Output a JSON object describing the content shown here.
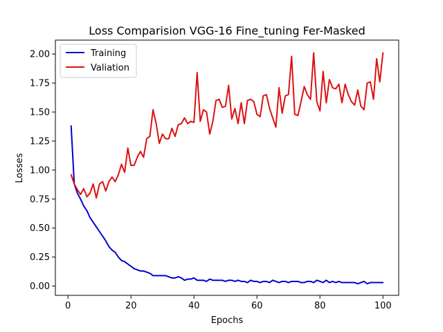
{
  "chart_data": {
    "type": "line",
    "title": "Loss Comparision VGG-16 Fine_tuning Fer-Masked",
    "xlabel": "Epochs",
    "ylabel": "Losses",
    "xlim": [
      -4,
      105
    ],
    "ylim": [
      -0.08,
      2.12
    ],
    "x_ticks": [
      0,
      20,
      40,
      60,
      80,
      100
    ],
    "x_tick_labels": [
      "0",
      "20",
      "40",
      "60",
      "80",
      "100"
    ],
    "y_ticks": [
      0,
      0.25,
      0.5,
      0.75,
      1.0,
      1.25,
      1.5,
      1.75,
      2.0
    ],
    "y_tick_labels": [
      "0.00",
      "0.25",
      "0.50",
      "0.75",
      "1.00",
      "1.25",
      "1.50",
      "1.75",
      "2.00"
    ],
    "grid": false,
    "legend_position": "top-left",
    "x": [
      1,
      2,
      3,
      4,
      5,
      6,
      7,
      8,
      9,
      10,
      11,
      12,
      13,
      14,
      15,
      16,
      17,
      18,
      19,
      20,
      21,
      22,
      23,
      24,
      25,
      26,
      27,
      28,
      29,
      30,
      31,
      32,
      33,
      34,
      35,
      36,
      37,
      38,
      39,
      40,
      41,
      42,
      43,
      44,
      45,
      46,
      47,
      48,
      49,
      50,
      51,
      52,
      53,
      54,
      55,
      56,
      57,
      58,
      59,
      60,
      61,
      62,
      63,
      64,
      65,
      66,
      67,
      68,
      69,
      70,
      71,
      72,
      73,
      74,
      75,
      76,
      77,
      78,
      79,
      80,
      81,
      82,
      83,
      84,
      85,
      86,
      87,
      88,
      89,
      90,
      91,
      92,
      93,
      94,
      95,
      96,
      97,
      98,
      99,
      100
    ],
    "series": [
      {
        "name": "Training",
        "color": "#0000cc",
        "values": [
          1.38,
          0.88,
          0.8,
          0.75,
          0.69,
          0.65,
          0.59,
          0.55,
          0.51,
          0.47,
          0.43,
          0.39,
          0.34,
          0.31,
          0.29,
          0.25,
          0.22,
          0.21,
          0.19,
          0.17,
          0.15,
          0.14,
          0.13,
          0.13,
          0.12,
          0.11,
          0.09,
          0.09,
          0.09,
          0.09,
          0.09,
          0.08,
          0.07,
          0.07,
          0.08,
          0.07,
          0.05,
          0.06,
          0.06,
          0.07,
          0.05,
          0.05,
          0.05,
          0.04,
          0.06,
          0.05,
          0.05,
          0.05,
          0.05,
          0.04,
          0.05,
          0.05,
          0.04,
          0.05,
          0.04,
          0.04,
          0.03,
          0.05,
          0.04,
          0.04,
          0.03,
          0.04,
          0.04,
          0.03,
          0.05,
          0.04,
          0.03,
          0.04,
          0.04,
          0.03,
          0.04,
          0.04,
          0.04,
          0.03,
          0.03,
          0.04,
          0.04,
          0.03,
          0.05,
          0.04,
          0.03,
          0.05,
          0.03,
          0.04,
          0.03,
          0.04,
          0.03,
          0.03,
          0.03,
          0.03,
          0.03,
          0.02,
          0.03,
          0.04,
          0.02,
          0.03,
          0.03,
          0.03,
          0.03,
          0.03
        ]
      },
      {
        "name": "Valiation",
        "color": "#dd1111",
        "values": [
          0.96,
          0.88,
          0.83,
          0.79,
          0.84,
          0.77,
          0.8,
          0.88,
          0.76,
          0.88,
          0.9,
          0.82,
          0.9,
          0.94,
          0.9,
          0.96,
          1.05,
          0.98,
          1.19,
          1.04,
          1.04,
          1.11,
          1.16,
          1.11,
          1.27,
          1.29,
          1.52,
          1.4,
          1.23,
          1.31,
          1.27,
          1.27,
          1.36,
          1.29,
          1.39,
          1.4,
          1.45,
          1.4,
          1.42,
          1.41,
          1.84,
          1.42,
          1.52,
          1.5,
          1.31,
          1.42,
          1.6,
          1.61,
          1.54,
          1.55,
          1.73,
          1.44,
          1.53,
          1.4,
          1.58,
          1.4,
          1.6,
          1.61,
          1.59,
          1.48,
          1.46,
          1.64,
          1.65,
          1.53,
          1.45,
          1.37,
          1.71,
          1.49,
          1.64,
          1.65,
          1.98,
          1.48,
          1.47,
          1.59,
          1.72,
          1.65,
          1.61,
          2.01,
          1.59,
          1.51,
          1.85,
          1.58,
          1.78,
          1.71,
          1.7,
          1.74,
          1.58,
          1.74,
          1.65,
          1.59,
          1.56,
          1.69,
          1.55,
          1.52,
          1.75,
          1.76,
          1.61,
          1.96,
          1.76,
          2.01
        ]
      }
    ]
  }
}
